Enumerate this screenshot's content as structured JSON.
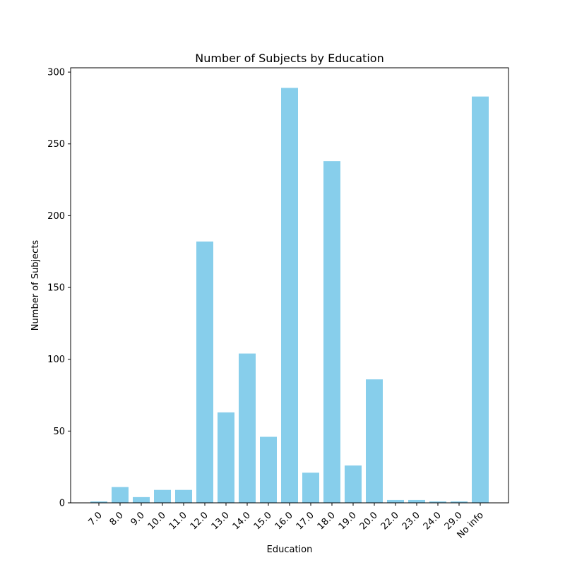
{
  "chart_data": {
    "type": "bar",
    "title": "Number of Subjects by Education",
    "xlabel": "Education",
    "ylabel": "Number of Subjects",
    "categories": [
      "7.0",
      "8.0",
      "9.0",
      "10.0",
      "11.0",
      "12.0",
      "13.0",
      "14.0",
      "15.0",
      "16.0",
      "17.0",
      "18.0",
      "19.0",
      "20.0",
      "22.0",
      "23.0",
      "24.0",
      "29.0",
      "No info"
    ],
    "values": [
      1,
      11,
      4,
      9,
      9,
      182,
      63,
      104,
      46,
      289,
      21,
      238,
      26,
      86,
      2,
      2,
      1,
      1,
      283
    ],
    "ylim": [
      0,
      303
    ],
    "yticks": [
      0,
      50,
      100,
      150,
      200,
      250,
      300
    ],
    "bar_color": "#87ceeb",
    "grid": false,
    "legend": "none"
  }
}
